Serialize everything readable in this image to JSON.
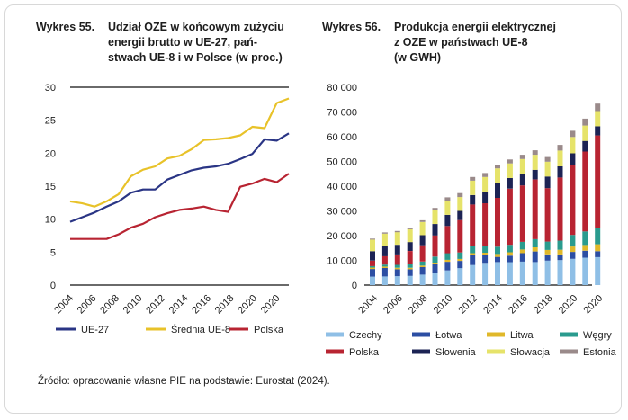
{
  "chart_data": [
    {
      "type": "line",
      "title_number": "Wykres 55.",
      "title_lines": [
        "Udział OZE w końcowym zużyciu",
        "energii brutto w UE-27, pań-",
        "stwach UE-8 i w Polsce (w proc.)"
      ],
      "x": [
        2004,
        2005,
        2006,
        2007,
        2008,
        2009,
        2010,
        2011,
        2012,
        2013,
        2014,
        2015,
        2016,
        2017,
        2018,
        2019,
        2020,
        2021,
        2022
      ],
      "xticks": [
        "2004",
        "2006",
        "2008",
        "2010",
        "2012",
        "2014",
        "2016",
        "2018",
        "2020",
        "2020"
      ],
      "yticks": [
        "0",
        "5",
        "10",
        "15",
        "20",
        "25",
        "30"
      ],
      "ylim": [
        0,
        30
      ],
      "series": [
        {
          "name": "UE-27",
          "color": "#2a3585",
          "values": [
            9.6,
            10.3,
            11.0,
            11.9,
            12.7,
            14.0,
            14.5,
            14.5,
            16.0,
            16.7,
            17.4,
            17.8,
            18.0,
            18.4,
            19.1,
            19.9,
            22.1,
            21.9,
            23.0
          ]
        },
        {
          "name": "Średnia UE-8",
          "color": "#e8c229",
          "values": [
            12.7,
            12.4,
            11.9,
            12.7,
            13.8,
            16.5,
            17.5,
            18.0,
            19.2,
            19.6,
            20.6,
            22.0,
            22.1,
            22.3,
            22.7,
            24.0,
            23.8,
            27.6,
            28.3
          ]
        },
        {
          "name": "Polska",
          "color": "#b82432",
          "values": [
            7.0,
            7.0,
            7.0,
            7.0,
            7.7,
            8.7,
            9.3,
            10.3,
            10.9,
            11.4,
            11.6,
            11.9,
            11.4,
            11.1,
            14.9,
            15.4,
            16.1,
            15.6,
            16.9
          ]
        }
      ]
    },
    {
      "type": "bar",
      "stacked": true,
      "title_number": "Wykres 56.",
      "title_lines": [
        "Produkcja energii elektrycznej",
        "z OZE w państwach UE-8",
        "(w GWH)"
      ],
      "categories": [
        2004,
        2005,
        2006,
        2007,
        2008,
        2009,
        2010,
        2011,
        2012,
        2013,
        2014,
        2015,
        2016,
        2017,
        2018,
        2019,
        2020,
        2021,
        2022
      ],
      "xticks": [
        "2004",
        "2006",
        "2008",
        "2010",
        "2012",
        "2014",
        "2016",
        "2018",
        "2020",
        "2020"
      ],
      "yticks": [
        "0",
        "10 000",
        "20 000",
        "30 000",
        "40 000",
        "50 000",
        "60 000",
        "70 000",
        "80 000"
      ],
      "ylim": [
        0,
        80000
      ],
      "series": [
        {
          "name": "Czechy",
          "color": "#8fbfe6",
          "values": [
            3400,
            3500,
            3600,
            3700,
            4200,
            4800,
            5900,
            6900,
            8100,
            9000,
            9300,
            9300,
            9500,
            9300,
            9900,
            10100,
            10600,
            11100,
            11300
          ]
        },
        {
          "name": "Łotwa",
          "color": "#2c4ea3",
          "values": [
            3100,
            3400,
            2800,
            2700,
            3100,
            3600,
            3500,
            2900,
            3900,
            3000,
            2100,
            2600,
            3400,
            4300,
            2500,
            2300,
            2800,
            2800,
            2400
          ]
        },
        {
          "name": "Litwa",
          "color": "#e0b82a",
          "values": [
            600,
            600,
            600,
            600,
            600,
            700,
            800,
            800,
            900,
            1100,
            1200,
            1400,
            1500,
            1700,
            1800,
            1900,
            2200,
            2300,
            2800
          ]
        },
        {
          "name": "Węgry",
          "color": "#2a9b8e",
          "values": [
            600,
            800,
            1200,
            1500,
            1600,
            2400,
            2700,
            2600,
            2800,
            2900,
            2900,
            3000,
            3100,
            3300,
            3400,
            3700,
            4700,
            5500,
            6700
          ]
        },
        {
          "name": "Polska",
          "color": "#b82432",
          "values": [
            2200,
            3400,
            4200,
            5300,
            6600,
            8600,
            11000,
            13100,
            16900,
            17100,
            19800,
            22700,
            22800,
            24100,
            21600,
            25500,
            28200,
            32300,
            37300
          ]
        },
        {
          "name": "Słowenia",
          "color": "#1c2354",
          "values": [
            3800,
            4100,
            3900,
            3600,
            4100,
            4600,
            4500,
            3700,
            3800,
            4600,
            6100,
            4300,
            4500,
            3900,
            4700,
            4500,
            4800,
            4300,
            3700
          ]
        },
        {
          "name": "Słowacja",
          "color": "#e6e36a",
          "values": [
            4700,
            5000,
            5100,
            5200,
            5300,
            5500,
            5800,
            5600,
            5800,
            6000,
            5800,
            5900,
            6200,
            6100,
            6000,
            6400,
            6600,
            6200,
            6200
          ]
        },
        {
          "name": "Estonia",
          "color": "#9a8a8a",
          "values": [
            400,
            500,
            500,
            600,
            700,
            1000,
            1300,
            1600,
            1500,
            1600,
            1500,
            1600,
            1700,
            1800,
            1900,
            2300,
            2500,
            2800,
            3000
          ]
        }
      ]
    }
  ],
  "source": "Źródło: opracowanie własne PIE na podstawie: Eurostat (2024)."
}
